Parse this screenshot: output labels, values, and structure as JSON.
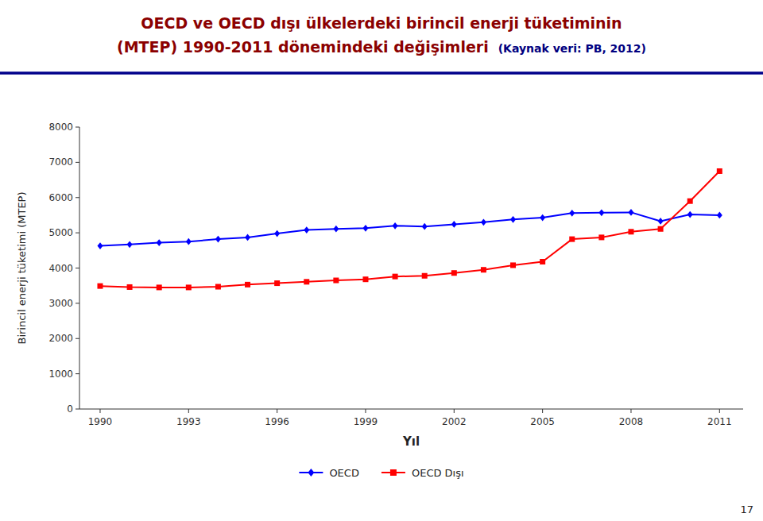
{
  "chart_data": {
    "type": "line",
    "title": "OECD ve OECD dışı ülkelerdeki birincil enerji tüketiminin",
    "subtitle": "(MTEP) 1990-2011 dönemindeki değişimleri",
    "annotations": [
      "(Kaynak veri: PB, 2012)",
      "17"
    ],
    "x_label": "Yıl",
    "y_label": "Birincil enerji tüketimi (MTEP)",
    "x": [
      1990,
      1991,
      1992,
      1993,
      1994,
      1995,
      1996,
      1997,
      1998,
      1999,
      2000,
      2001,
      2002,
      2003,
      2004,
      2005,
      2006,
      2007,
      2008,
      2009,
      2010,
      2011
    ],
    "series": [
      {
        "name": "OECD",
        "color": "#0000FF",
        "marker": "diamond",
        "line_style": "solid",
        "values": [
          4630,
          4670,
          4720,
          4750,
          4820,
          4870,
          4980,
          5080,
          5110,
          5130,
          5200,
          5180,
          5240,
          5300,
          5380,
          5430,
          5560,
          5570,
          5580,
          5330,
          5520,
          5500
        ]
      },
      {
        "name": "OECD Dışı",
        "color": "#FF0000",
        "marker": "square",
        "line_style": "solid",
        "values": [
          3490,
          3460,
          3450,
          3450,
          3470,
          3530,
          3570,
          3610,
          3650,
          3680,
          3760,
          3780,
          3860,
          3950,
          4080,
          4180,
          4820,
          4870,
          5030,
          5110,
          5900,
          6750
        ]
      }
    ],
    "xlim": [
      1989.3,
      2011.8
    ],
    "xticks": [
      1990,
      1993,
      1996,
      1999,
      2002,
      2005,
      2008,
      2011
    ],
    "ylim": [
      0,
      8000
    ],
    "yticks": [
      0,
      1000,
      2000,
      3000,
      4000,
      5000,
      6000,
      7000,
      8000
    ],
    "grid": false,
    "legend": "bottom"
  }
}
